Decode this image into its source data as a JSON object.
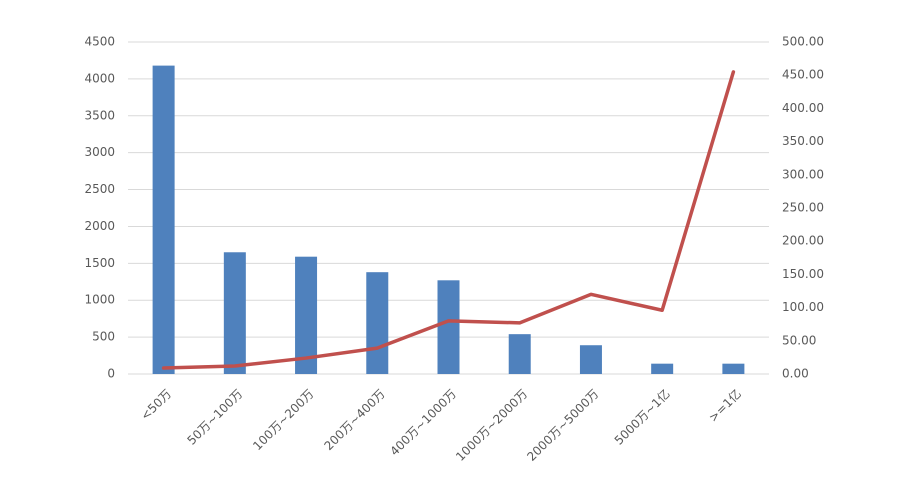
{
  "chart_data": {
    "type": "bar",
    "categories": [
      "<50万",
      "50万~100万",
      "100万~200万",
      "200万~400万",
      "400万~1000万",
      "1000万~2000万",
      "2000万~5000万",
      "5000万~1亿",
      ">=1亿"
    ],
    "series": [
      {
        "type": "bar",
        "color": "#4f81bd",
        "values": [
          4180,
          1650,
          1590,
          1380,
          1270,
          540,
          390,
          140,
          140
        ]
      },
      {
        "type": "line",
        "axis": "y2",
        "color": "#c0504d",
        "values": [
          9,
          12,
          24,
          39,
          80,
          77,
          120,
          96,
          455
        ]
      }
    ],
    "ylim": [
      0,
      4500
    ],
    "yticks": [
      0,
      500,
      1000,
      1500,
      2000,
      2500,
      3000,
      3500,
      4000,
      4500
    ],
    "y2lim": [
      0,
      500
    ],
    "y2ticks": [
      {
        "value": 0,
        "label": "0.00"
      },
      {
        "value": 50,
        "label": "50.00"
      },
      {
        "value": 100,
        "label": "100.00"
      },
      {
        "value": 150,
        "label": "150.00"
      },
      {
        "value": 200,
        "label": "200.00"
      },
      {
        "value": 250,
        "label": "250.00"
      },
      {
        "value": 300,
        "label": "300.00"
      },
      {
        "value": 350,
        "label": "350.00"
      },
      {
        "value": 400,
        "label": "400.00"
      },
      {
        "value": 450,
        "label": "450.00"
      },
      {
        "value": 500,
        "label": "500.00"
      }
    ],
    "grid": true
  }
}
